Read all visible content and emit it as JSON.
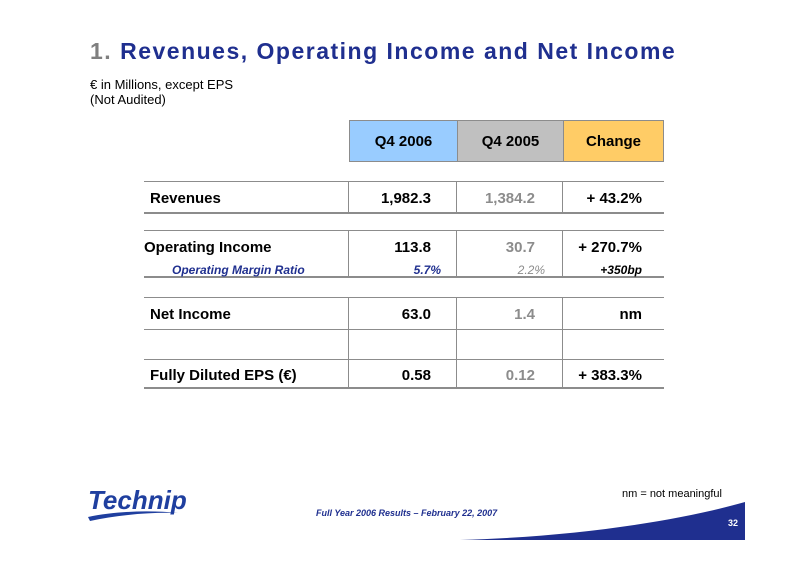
{
  "title": {
    "number": "1.",
    "text": "Revenues, Operating Income and Net Income"
  },
  "subtitle": {
    "line1": "€ in Millions, except EPS",
    "line2": "(Not Audited)"
  },
  "columns": {
    "current": "Q4 2006",
    "prior": "Q4 2005",
    "change": "Change"
  },
  "rows": {
    "revenues": {
      "label": "Revenues",
      "current": "1,982.3",
      "prior": "1,384.2",
      "change": "+ 43.2%"
    },
    "operating_income": {
      "label": "Operating Income",
      "current": "113.8",
      "prior": "30.7",
      "change": "+ 270.7%"
    },
    "operating_margin": {
      "label": "Operating Margin Ratio",
      "current": "5.7%",
      "prior": "2.2%",
      "change": "+350bp"
    },
    "net_income": {
      "label": "Net Income",
      "current": "63.0",
      "prior": "1.4",
      "change": "nm"
    },
    "eps": {
      "label": "Fully Diluted EPS (€)",
      "current": "0.58",
      "prior": "0.12",
      "change": "+ 383.3%"
    }
  },
  "footnote": "nm = not meaningful",
  "footer": "Full Year 2006 Results – February 22, 2007",
  "page_number": "32",
  "logo_text": "Technip",
  "colors": {
    "title_blue": "#1f2f8f",
    "q4_2006": "#99ccff",
    "q4_2005": "#c0c0c0",
    "change": "#ffcc66",
    "gray_text": "#8c8c8c"
  }
}
